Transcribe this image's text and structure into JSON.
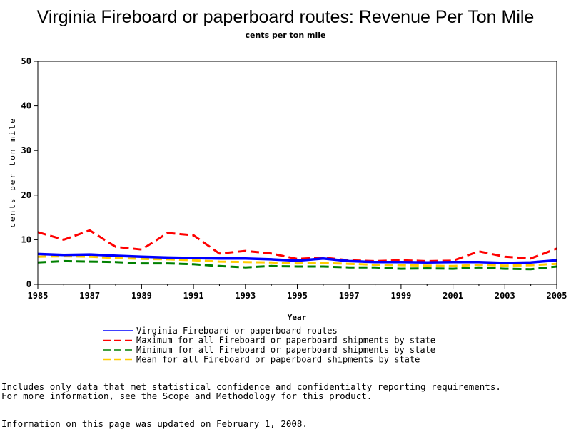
{
  "chart_data": {
    "type": "line",
    "title": "Virginia Fireboard or paperboard routes: Revenue Per Ton Mile",
    "subtitle": "cents per ton mile",
    "xlabel": "Year",
    "ylabel": "cents per ton mile",
    "xlim": [
      1985,
      2005
    ],
    "ylim": [
      0,
      50
    ],
    "x_ticks": [
      "1985",
      "1987",
      "1989",
      "1991",
      "1993",
      "1995",
      "1997",
      "1999",
      "2001",
      "2003",
      "2005"
    ],
    "y_ticks": [
      "0",
      "10",
      "20",
      "30",
      "40",
      "50"
    ],
    "x": [
      1985,
      1986,
      1987,
      1988,
      1989,
      1990,
      1991,
      1992,
      1993,
      1994,
      1995,
      1996,
      1997,
      1998,
      1999,
      2000,
      2001,
      2002,
      2003,
      2004,
      2005
    ],
    "grid": false,
    "legend_position": "bottom",
    "series": [
      {
        "name": "Virginia Fireboard or paperboard routes",
        "color": "#0000ff",
        "style": "solid",
        "values": [
          6.8,
          6.6,
          6.7,
          6.4,
          6.2,
          6.0,
          5.9,
          5.8,
          5.8,
          5.6,
          5.3,
          5.8,
          5.2,
          5.0,
          5.0,
          4.9,
          5.0,
          5.0,
          4.8,
          4.9,
          5.4
        ]
      },
      {
        "name": "Maximum for all Fireboard or paperboard shipments by state",
        "color": "#ff0000",
        "style": "dashed",
        "values": [
          11.7,
          10.0,
          12.1,
          8.4,
          7.8,
          11.5,
          11.0,
          6.9,
          7.5,
          6.9,
          5.7,
          6.0,
          5.4,
          5.2,
          5.4,
          5.2,
          5.3,
          7.4,
          6.2,
          5.8,
          8.0
        ]
      },
      {
        "name": "Minimum for all Fireboard or paperboard shipments by state",
        "color": "#008000",
        "style": "dashed",
        "values": [
          4.9,
          5.2,
          5.1,
          5.0,
          4.7,
          4.7,
          4.5,
          4.1,
          3.8,
          4.1,
          4.0,
          4.0,
          3.8,
          3.8,
          3.5,
          3.6,
          3.5,
          3.8,
          3.5,
          3.4,
          4.0
        ]
      },
      {
        "name": "Mean for all Fireboard or paperboard shipments by state",
        "color": "#ffcc00",
        "style": "dashed",
        "values": [
          6.2,
          6.3,
          6.2,
          5.9,
          5.7,
          5.6,
          5.4,
          5.1,
          5.0,
          4.9,
          4.7,
          4.8,
          4.6,
          4.4,
          4.3,
          4.2,
          4.1,
          4.4,
          4.2,
          4.3,
          4.6
        ]
      }
    ]
  },
  "footnote": {
    "line1": "Includes only data that met statistical confidence and confidentialty reporting requirements.",
    "line2": "For more information, see the Scope and Methodology for this product.",
    "line3": "Information on this page was updated on February 1, 2008."
  }
}
